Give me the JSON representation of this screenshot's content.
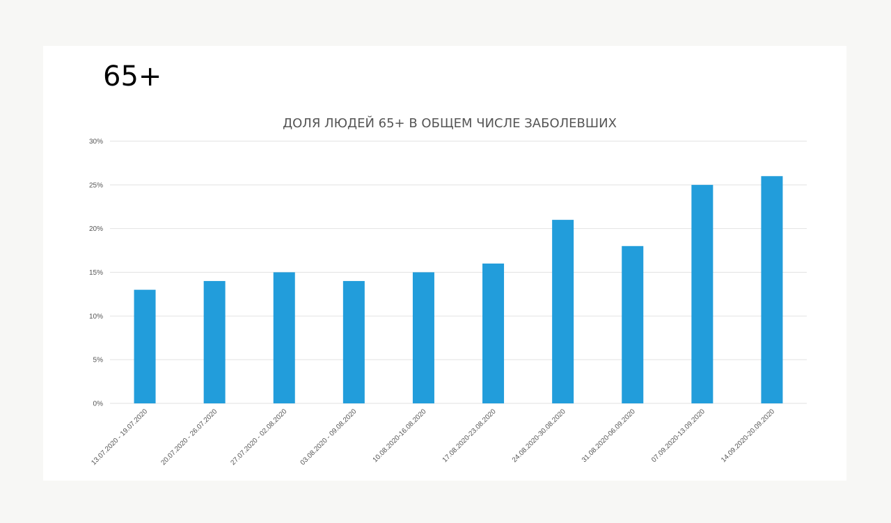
{
  "slide": {
    "title": "65+"
  },
  "colors": {
    "bar": "#229ddb",
    "background": "#ffffff",
    "page": "#f7f7f5"
  },
  "chart_data": {
    "type": "bar",
    "title": "ДОЛЯ ЛЮДЕЙ 65+ В ОБЩЕМ ЧИСЛЕ ЗАБОЛЕВШИХ",
    "xlabel": "",
    "ylabel": "",
    "ylim": [
      0,
      30
    ],
    "yticks": [
      0,
      5,
      10,
      15,
      20,
      25,
      30
    ],
    "ytick_labels": [
      "0%",
      "5%",
      "10%",
      "15%",
      "20%",
      "25%",
      "30%"
    ],
    "grid": true,
    "legend": "none",
    "categories": [
      "13.07.2020 - 19.07.2020",
      "20.07.2020 - 26.07.2020",
      "27.07.2020 - 02.08.2020",
      "03.08.2020 - 09.08.2020",
      "10.08.2020-16.08.2020",
      "17.08.2020-23.08.2020",
      "24.08.2020-30.08.2020",
      "31.08.2020-06.09.2020",
      "07.09.2020-13.09.2020",
      "14.09.2020-20.09.2020"
    ],
    "values": [
      13,
      14,
      15,
      14,
      15,
      16,
      21,
      18,
      25,
      26
    ]
  }
}
